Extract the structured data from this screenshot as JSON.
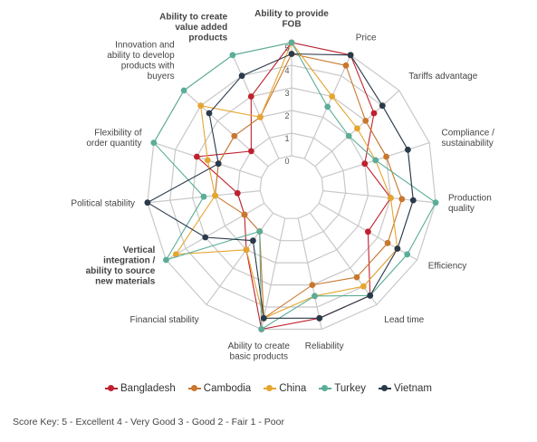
{
  "chart_data": {
    "type": "radar",
    "title": "",
    "scale_min": 0,
    "scale_max": 5,
    "tick_labels": [
      "0",
      "1",
      "2",
      "3",
      "4",
      "5"
    ],
    "axes": [
      "Ability to provide FOB",
      "Price",
      "Tariffs advantage",
      "Compliance / sustainability",
      "Production quality",
      "Efficiency",
      "Lead time",
      "Reliability",
      "Ability to create basic products",
      "Financial stability",
      "Vertical integration / ability to source new materials",
      "Political stability",
      "Flexibility of order quantity",
      "Innovation and ability to develop products with buyers",
      "Ability to create value added products"
    ],
    "series": [
      {
        "name": "Bangladesh",
        "color": "#c0202e",
        "values": [
          5,
          5,
          3.5,
          2,
          3,
          2.5,
          4.5,
          4.5,
          5,
          2,
          1,
          1,
          3,
          1,
          3
        ]
      },
      {
        "name": "Cambodia",
        "color": "#c8772e",
        "values": [
          4.5,
          4.5,
          3,
          3,
          3.5,
          3.5,
          3.5,
          3,
          4.5,
          1,
          1,
          2,
          2,
          2,
          2
        ]
      },
      {
        "name": "China",
        "color": "#e5a630",
        "values": [
          5,
          3,
          2.5,
          2.5,
          3,
          4,
          4,
          3.5,
          4.5,
          2,
          4.5,
          2,
          2.5,
          4,
          2
        ]
      },
      {
        "name": "Turkey",
        "color": "#5bad98",
        "values": [
          5,
          2.5,
          2,
          2.5,
          5,
          4.5,
          4.5,
          3.5,
          5,
          1,
          5,
          2.5,
          5,
          5,
          5
        ]
      },
      {
        "name": "Vietnam",
        "color": "#2a3a4a",
        "values": [
          4.5,
          5,
          4,
          4,
          4,
          4,
          4.5,
          4.5,
          4.5,
          1.5,
          3,
          5,
          2,
          3.5,
          4
        ]
      }
    ],
    "legend_position": "bottom",
    "grid": true
  },
  "score_key": "Score Key:  5 - Excellent  4 - Very Good  3 - Good  2 - Fair  1 - Poor"
}
